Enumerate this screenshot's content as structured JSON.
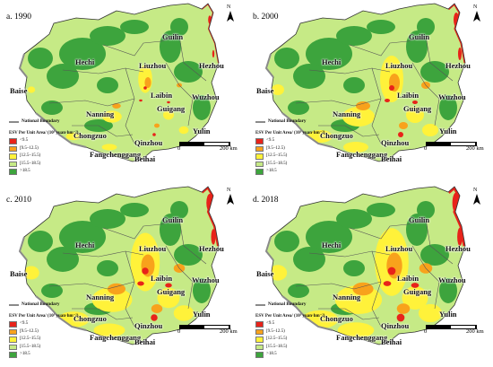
{
  "panels": [
    {
      "title": "a. 1990"
    },
    {
      "title": "b. 2000"
    },
    {
      "title": "c. 2010"
    },
    {
      "title": "d. 2018"
    }
  ],
  "cities": [
    "Guilin",
    "Hechi",
    "Liuzhou",
    "Hezhou",
    "Baise",
    "Laibin",
    "Wuzhou",
    "Guigang",
    "Nanning",
    "Yulin",
    "Chongzuo",
    "Qinzhou",
    "Fangchenggang",
    "Beihai"
  ],
  "boundary_label": "National Boundary",
  "legend": {
    "title": "ESV Per Unit Area/ (10³ yuan·hm⁻²)",
    "classes": [
      {
        "label": "<9.5",
        "color": "#e8231a"
      },
      {
        "label": "[9.5–12.5)",
        "color": "#f8a21c"
      },
      {
        "label": "[12.5–15.5)",
        "color": "#fff23a"
      },
      {
        "label": "[15.5–18.5)",
        "color": "#c6ea86"
      },
      {
        "label": ">18.5",
        "color": "#3da43d"
      }
    ]
  },
  "scale": {
    "start": "0",
    "end": "200 km"
  },
  "north_label": "N"
}
